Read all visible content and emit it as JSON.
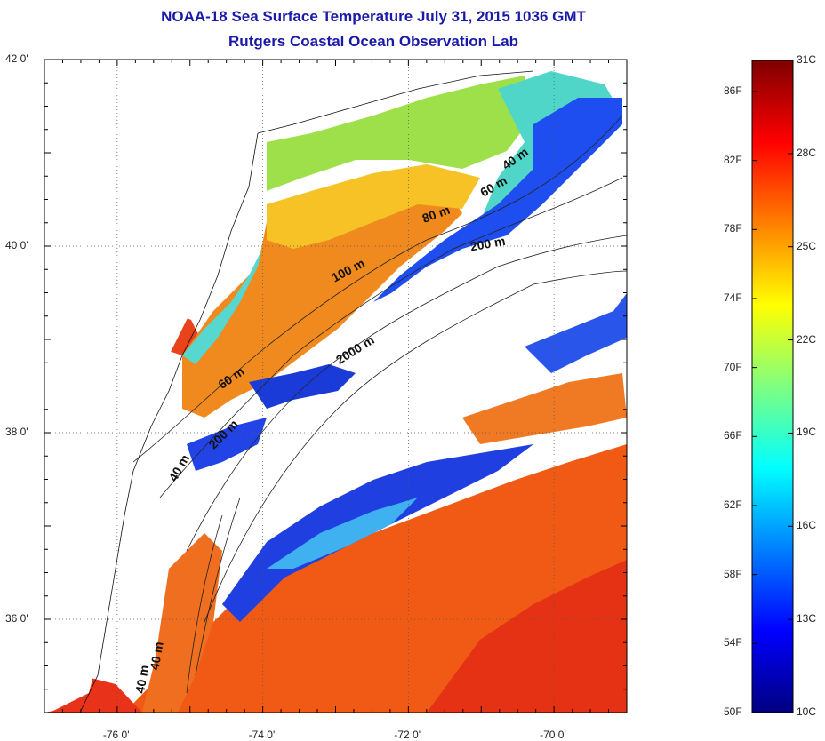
{
  "title": {
    "line1": "NOAA-18 Sea Surface Temperature July 31, 2015 1036 GMT",
    "line2": "Rutgers Coastal Ocean Observation Lab"
  },
  "map": {
    "lon_range": [
      -77,
      -69
    ],
    "lat_range": [
      35,
      42
    ],
    "lon_ticks": [
      {
        "lon": -76,
        "label": "-76 0'"
      },
      {
        "lon": -74,
        "label": "-74 0'"
      },
      {
        "lon": -72,
        "label": "-72 0'"
      },
      {
        "lon": -70,
        "label": "-70 0'"
      }
    ],
    "lat_ticks": [
      {
        "lat": 42,
        "label": "42 0'"
      },
      {
        "lat": 40,
        "label": "40 0'"
      },
      {
        "lat": 38,
        "label": "38 0'"
      },
      {
        "lat": 36,
        "label": "36 0'"
      }
    ],
    "grid_style": "dotted",
    "contour_labels": [
      {
        "text": "40 m",
        "lon": -70.5,
        "lat": 40.9,
        "angle": -35
      },
      {
        "text": "60 m",
        "lon": -70.8,
        "lat": 40.6,
        "angle": -30
      },
      {
        "text": "80 m",
        "lon": -71.6,
        "lat": 40.3,
        "angle": -20
      },
      {
        "text": "200 m",
        "lon": -70.9,
        "lat": 39.98,
        "angle": -10
      },
      {
        "text": "100 m",
        "lon": -72.8,
        "lat": 39.7,
        "angle": -28
      },
      {
        "text": "2000 m",
        "lon": -72.7,
        "lat": 38.85,
        "angle": -32
      },
      {
        "text": "60 m",
        "lon": -74.4,
        "lat": 38.55,
        "angle": -35
      },
      {
        "text": "200 m",
        "lon": -74.5,
        "lat": 37.95,
        "angle": -45
      },
      {
        "text": "40 m",
        "lon": -75.1,
        "lat": 37.6,
        "angle": -60
      },
      {
        "text": "40 m",
        "lon": -75.4,
        "lat": 35.6,
        "angle": -80
      },
      {
        "text": "40 m",
        "lon": -75.6,
        "lat": 35.35,
        "angle": -80
      }
    ]
  },
  "colorbar": {
    "colors": [
      "#00007f",
      "#0000ff",
      "#007fff",
      "#00ffff",
      "#7fff7f",
      "#ffff00",
      "#ff7f00",
      "#ff0000",
      "#7f0000"
    ],
    "celsius_range": [
      10,
      31
    ],
    "fahrenheit_range": [
      50,
      87.8
    ],
    "celsius_ticks": [
      "10C",
      "13C",
      "16C",
      "19C",
      "22C",
      "25C",
      "28C",
      "31C"
    ],
    "fahrenheit_ticks": [
      "50F",
      "54F",
      "58F",
      "62F",
      "66F",
      "70F",
      "74F",
      "78F",
      "82F",
      "86F"
    ]
  }
}
